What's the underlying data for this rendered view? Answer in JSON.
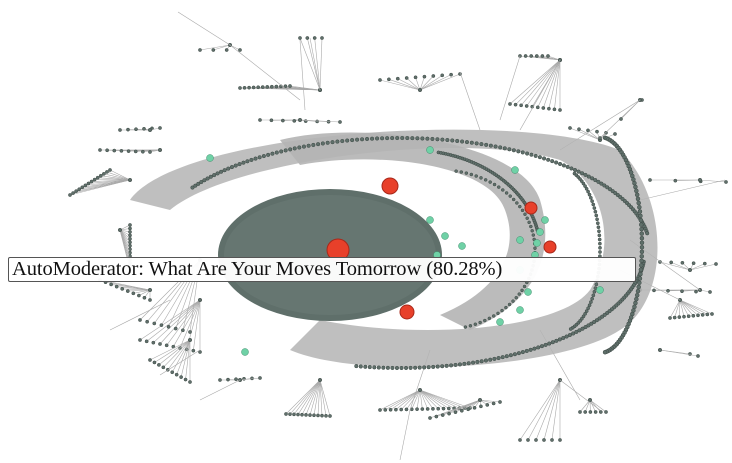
{
  "tooltip": {
    "text": "AutoModerator: What Are Your Moves Tomorrow (80.28%)"
  },
  "colors": {
    "background": "#ffffff",
    "edge": "#a9a9a9",
    "node": "#5f6f6a",
    "node_stroke": "#3c4844",
    "highlight_node": "#e8402a",
    "highlight_stroke": "#a8281a",
    "secondary_node": "#6fd1a6",
    "secondary_stroke": "#3d8d6c",
    "tooltip_border": "#555555"
  }
}
